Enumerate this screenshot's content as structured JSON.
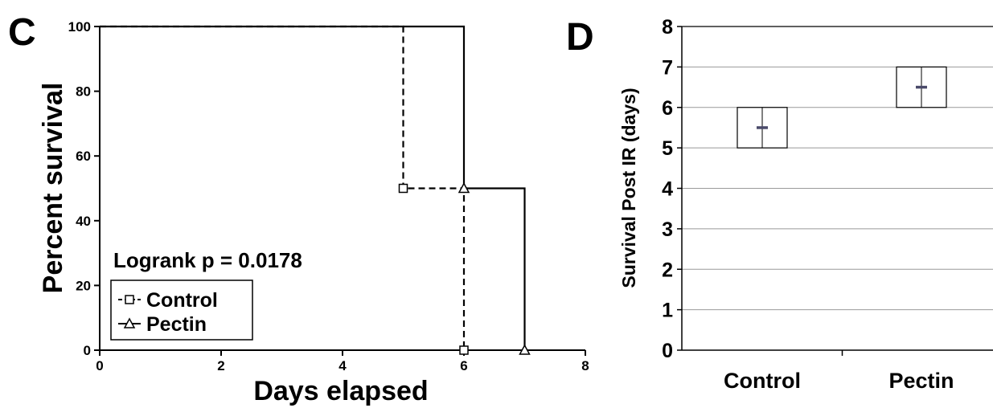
{
  "chart_data": [
    {
      "type": "line",
      "panel_label": "C",
      "xlabel": "Days elapsed",
      "ylabel": "Percent survival",
      "xlim": [
        0,
        8
      ],
      "ylim": [
        0,
        100
      ],
      "x_ticks": [
        0,
        2,
        4,
        6,
        8
      ],
      "y_ticks": [
        0,
        20,
        40,
        60,
        80,
        100
      ],
      "annotation": "Logrank p = 0.0178",
      "legend_position": "bottom-left",
      "series": [
        {
          "name": "Control",
          "line_style": "dashed",
          "marker": "square",
          "step_points": [
            [
              0,
              100
            ],
            [
              5,
              100
            ],
            [
              5,
              50
            ],
            [
              6,
              50
            ],
            [
              6,
              0
            ]
          ],
          "marker_points": [
            [
              5,
              50
            ],
            [
              6,
              0
            ]
          ]
        },
        {
          "name": "Pectin",
          "line_style": "solid",
          "marker": "triangle",
          "step_points": [
            [
              0,
              100
            ],
            [
              6,
              100
            ],
            [
              6,
              50
            ],
            [
              7,
              50
            ],
            [
              7,
              0
            ]
          ],
          "marker_points": [
            [
              6,
              50
            ],
            [
              7,
              0
            ]
          ]
        }
      ]
    },
    {
      "type": "box",
      "panel_label": "D",
      "ylabel": "Survival Post IR (days)",
      "ylim": [
        0,
        8
      ],
      "y_ticks": [
        0,
        1,
        2,
        3,
        4,
        5,
        6,
        7,
        8
      ],
      "grid": true,
      "categories": [
        "Control",
        "Pectin"
      ],
      "boxes": [
        {
          "category": "Control",
          "low": 5,
          "high": 6,
          "median": 5.5
        },
        {
          "category": "Pectin",
          "low": 6,
          "high": 7,
          "median": 6.5
        }
      ]
    }
  ]
}
